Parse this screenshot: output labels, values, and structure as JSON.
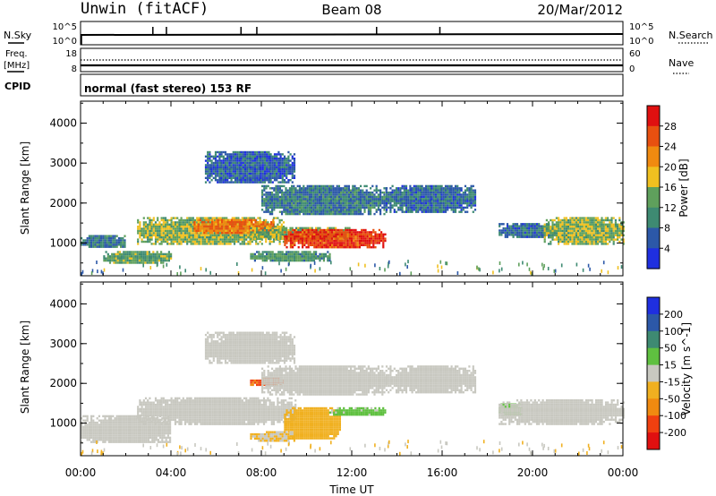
{
  "header": {
    "station": "Unwin (fitACF)",
    "beam": "Beam 08",
    "date": "20/Mar/2012"
  },
  "noise_panel": {
    "left_label": "N.Sky",
    "right_label": "N.Search",
    "left_ticks": [
      "10^5",
      "10^0"
    ],
    "right_ticks": [
      "10^5",
      "10^0"
    ]
  },
  "freq_panel": {
    "left_label_1": "Freq.",
    "left_label_2": "[MHz]",
    "right_label": "Nave",
    "left_ticks": [
      "18",
      "8"
    ],
    "right_ticks": [
      "60",
      "0"
    ]
  },
  "cpid_panel": {
    "label": "CPID",
    "mode_text": "normal (fast stereo) 153 RF"
  },
  "colors": {
    "power_scale": [
      "#1f2fe0",
      "#2c58a8",
      "#3e8a72",
      "#5fa05c",
      "#f0c020",
      "#f08a10",
      "#e85010",
      "#e01010"
    ],
    "velocity_scale": [
      "#e01010",
      "#f04010",
      "#f08a10",
      "#f0b020",
      "#c8c8c0",
      "#5fc040",
      "#3e8a72",
      "#2c58a8",
      "#1f2fe0"
    ]
  },
  "chart_data": [
    {
      "type": "heatmap",
      "title": "",
      "xlabel": "Time UT",
      "ylabel": "Slant Range [km]",
      "xlim": [
        "00:00",
        "24:00"
      ],
      "ylim": [
        180,
        4550
      ],
      "x_ticks": [
        "00:00",
        "04:00",
        "08:00",
        "12:00",
        "16:00",
        "20:00",
        "00:00"
      ],
      "y_ticks": [
        "1000",
        "2000",
        "3000",
        "4000"
      ],
      "colorbar": {
        "label": "Power [dB]",
        "ticks": [
          "4",
          "8",
          "12",
          "16",
          "20",
          "24",
          "28"
        ],
        "range": [
          0,
          30
        ]
      },
      "regions": [
        {
          "t_start": 0.0,
          "t_end": 2.0,
          "range_start": 900,
          "range_end": 1200,
          "value": 8
        },
        {
          "t_start": 1.0,
          "t_end": 4.0,
          "range_start": 500,
          "range_end": 800,
          "value": 12
        },
        {
          "t_start": 2.5,
          "t_end": 9.0,
          "range_start": 1000,
          "range_end": 1650,
          "value": 14
        },
        {
          "t_start": 5.0,
          "t_end": 8.5,
          "range_start": 1250,
          "range_end": 1600,
          "value": 22
        },
        {
          "t_start": 5.5,
          "t_end": 9.5,
          "range_start": 2500,
          "range_end": 3300,
          "value": 6
        },
        {
          "t_start": 8.0,
          "t_end": 13.5,
          "range_start": 1700,
          "range_end": 2450,
          "value": 8
        },
        {
          "t_start": 7.5,
          "t_end": 12.0,
          "range_start": 1100,
          "range_end": 1400,
          "value": 13
        },
        {
          "t_start": 9.0,
          "t_end": 13.5,
          "range_start": 900,
          "range_end": 1350,
          "value": 26
        },
        {
          "t_start": 7.5,
          "t_end": 11.0,
          "range_start": 550,
          "range_end": 800,
          "value": 11
        },
        {
          "t_start": 13.5,
          "t_end": 17.5,
          "range_start": 1800,
          "range_end": 2450,
          "value": 7
        },
        {
          "t_start": 18.5,
          "t_end": 21.0,
          "range_start": 1150,
          "range_end": 1500,
          "value": 7
        },
        {
          "t_start": 20.5,
          "t_end": 24.0,
          "range_start": 1000,
          "range_end": 1650,
          "value": 14
        }
      ]
    },
    {
      "type": "heatmap",
      "title": "",
      "xlabel": "Time UT",
      "ylabel": "Slant Range [km]",
      "xlim": [
        "00:00",
        "24:00"
      ],
      "ylim": [
        180,
        4550
      ],
      "x_ticks": [
        "00:00",
        "04:00",
        "08:00",
        "12:00",
        "16:00",
        "20:00",
        "00:00"
      ],
      "y_ticks": [
        "1000",
        "2000",
        "3000",
        "4000"
      ],
      "colorbar": {
        "label": "Velocity [m s^-1]",
        "ticks": [
          "200",
          "100",
          "50",
          "15",
          "-15",
          "-50",
          "-100",
          "-200"
        ],
        "range": [
          -250,
          250
        ]
      },
      "regions": [
        {
          "t_start": 0.0,
          "t_end": 4.0,
          "range_start": 500,
          "range_end": 1200,
          "value": 0
        },
        {
          "t_start": 2.5,
          "t_end": 9.5,
          "range_start": 1000,
          "range_end": 1650,
          "value": 0
        },
        {
          "t_start": 5.5,
          "t_end": 9.5,
          "range_start": 2500,
          "range_end": 3300,
          "value": 0
        },
        {
          "t_start": 7.5,
          "t_end": 8.9,
          "range_start": 1950,
          "range_end": 2150,
          "value": -150
        },
        {
          "t_start": 8.0,
          "t_end": 13.5,
          "range_start": 1700,
          "range_end": 2450,
          "value": 0
        },
        {
          "t_start": 9.0,
          "t_end": 11.5,
          "range_start": 600,
          "range_end": 1400,
          "value": -60
        },
        {
          "t_start": 11.0,
          "t_end": 13.5,
          "range_start": 1200,
          "range_end": 1400,
          "value": 40
        },
        {
          "t_start": 7.5,
          "t_end": 9.5,
          "range_start": 550,
          "range_end": 800,
          "value": -30
        },
        {
          "t_start": 13.5,
          "t_end": 17.5,
          "range_start": 1800,
          "range_end": 2450,
          "value": 0
        },
        {
          "t_start": 18.5,
          "t_end": 19.5,
          "range_start": 1200,
          "range_end": 1500,
          "value": 60
        },
        {
          "t_start": 18.5,
          "t_end": 24.0,
          "range_start": 1000,
          "range_end": 1600,
          "value": 0
        }
      ]
    }
  ]
}
